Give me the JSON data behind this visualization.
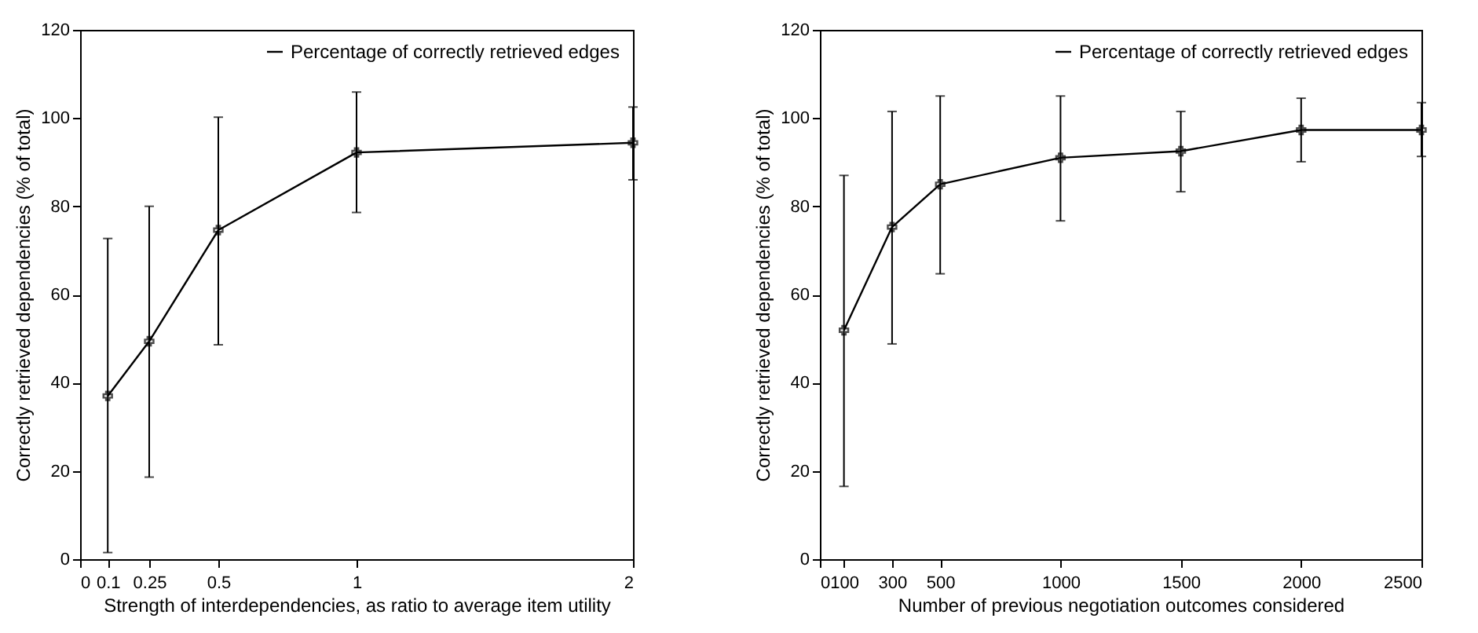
{
  "chart_data": [
    {
      "type": "line",
      "xlabel": "Strength of interdependencies, as ratio to average item utility",
      "ylabel": "Correctly retrieved dependencies (% of total)",
      "x": [
        0.1,
        0.25,
        0.5,
        1,
        2
      ],
      "xlim": [
        0,
        2
      ],
      "xticks": [
        0,
        0.1,
        0.25,
        0.5,
        1,
        2
      ],
      "ylim": [
        0,
        120
      ],
      "yticks": [
        0,
        20,
        40,
        60,
        80,
        100,
        120
      ],
      "grid": false,
      "legend": "top right",
      "marker": "cross",
      "line_style": "solid",
      "series": [
        {
          "name": "Percentage of correctly retrieved edges",
          "color": "#000000",
          "values": [
            37,
            49.4,
            74.6,
            92.2,
            94.4
          ],
          "errors": [
            [
              1.5,
              72.7
            ],
            [
              18.6,
              80
            ],
            [
              48.6,
              100.2
            ],
            [
              78.6,
              105.9
            ],
            [
              86,
              102.5
            ]
          ]
        }
      ]
    },
    {
      "type": "line",
      "xlabel": "Number of previous negotiation outcomes considered",
      "ylabel": "Correctly retrieved dependencies (% of total)",
      "x": [
        100,
        300,
        500,
        1000,
        1500,
        2000,
        2500
      ],
      "xlim": [
        0,
        2500
      ],
      "xticks": [
        0,
        100,
        300,
        500,
        1000,
        1500,
        2000,
        2500
      ],
      "ylim": [
        0,
        120
      ],
      "yticks": [
        0,
        20,
        40,
        60,
        80,
        100,
        120
      ],
      "grid": false,
      "legend": "top right",
      "marker": "cross",
      "line_style": "solid",
      "series": [
        {
          "name": "Percentage of correctly retrieved edges",
          "color": "#000000",
          "values": [
            51.9,
            75.3,
            85,
            91,
            92.5,
            97.3,
            97.3
          ],
          "errors": [
            [
              16.5,
              87
            ],
            [
              48.8,
              101.5
            ],
            [
              64.7,
              105
            ],
            [
              76.7,
              105
            ],
            [
              83.3,
              101.5
            ],
            [
              90.1,
              104.5
            ],
            [
              91.3,
              103.5
            ]
          ]
        }
      ]
    }
  ]
}
